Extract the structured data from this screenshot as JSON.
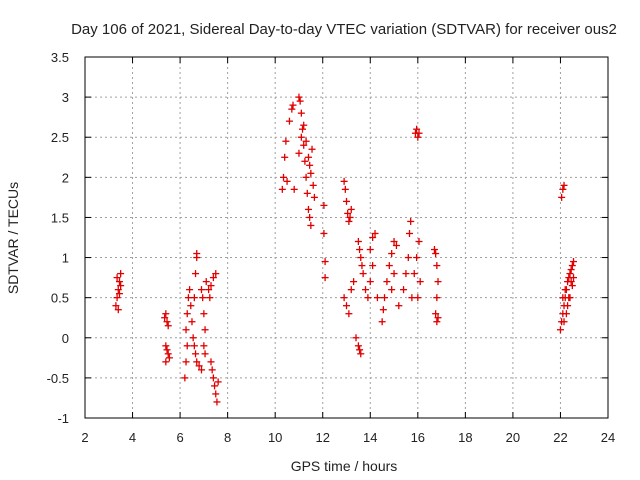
{
  "chart_data": {
    "type": "scatter",
    "title": "Day 106 of 2021, Sidereal Day-to-day VTEC variation (SDTVAR) for receiver ous2",
    "xlabel": "GPS time / hours",
    "ylabel": "SDTVAR / TECUs",
    "xlim": [
      2,
      24
    ],
    "ylim": [
      -1,
      3.5
    ],
    "xticks": [
      "2",
      "4",
      "6",
      "8",
      "10",
      "12",
      "14",
      "16",
      "18",
      "20",
      "22",
      "24"
    ],
    "yticks": [
      "-1",
      "-0.5",
      "0",
      "0.5",
      "1",
      "1.5",
      "2",
      "2.5",
      "3",
      "3.5"
    ],
    "grid": true,
    "marker": "+",
    "color": "#e00000",
    "series": [
      {
        "name": "SDTVAR",
        "points": [
          [
            3.3,
            0.4
          ],
          [
            3.35,
            0.5
          ],
          [
            3.4,
            0.6
          ],
          [
            3.45,
            0.7
          ],
          [
            3.5,
            0.8
          ],
          [
            3.4,
            0.35
          ],
          [
            3.45,
            0.55
          ],
          [
            3.5,
            0.65
          ],
          [
            3.35,
            0.75
          ],
          [
            5.35,
            0.25
          ],
          [
            5.4,
            0.3
          ],
          [
            5.45,
            0.2
          ],
          [
            5.5,
            0.15
          ],
          [
            5.4,
            -0.1
          ],
          [
            5.45,
            -0.15
          ],
          [
            5.5,
            -0.2
          ],
          [
            5.55,
            -0.25
          ],
          [
            5.4,
            -0.3
          ],
          [
            6.2,
            -0.5
          ],
          [
            6.25,
            -0.3
          ],
          [
            6.3,
            -0.1
          ],
          [
            6.25,
            0.1
          ],
          [
            6.3,
            0.3
          ],
          [
            6.35,
            0.5
          ],
          [
            6.4,
            0.6
          ],
          [
            6.45,
            0.4
          ],
          [
            6.5,
            0.2
          ],
          [
            6.55,
            0.0
          ],
          [
            6.6,
            0.5
          ],
          [
            6.65,
            0.8
          ],
          [
            6.7,
            1.0
          ],
          [
            6.7,
            1.05
          ],
          [
            6.6,
            -0.1
          ],
          [
            6.65,
            -0.2
          ],
          [
            6.7,
            -0.3
          ],
          [
            6.8,
            -0.35
          ],
          [
            6.9,
            -0.4
          ],
          [
            7.0,
            -0.1
          ],
          [
            7.05,
            0.1
          ],
          [
            7.0,
            0.3
          ],
          [
            6.95,
            0.5
          ],
          [
            6.9,
            0.6
          ],
          [
            7.1,
            0.7
          ],
          [
            7.05,
            -0.2
          ],
          [
            7.2,
            0.6
          ],
          [
            7.25,
            0.5
          ],
          [
            7.3,
            0.65
          ],
          [
            7.4,
            0.75
          ],
          [
            7.5,
            0.8
          ],
          [
            7.3,
            -0.3
          ],
          [
            7.35,
            -0.4
          ],
          [
            7.4,
            -0.5
          ],
          [
            7.45,
            -0.6
          ],
          [
            7.5,
            -0.7
          ],
          [
            7.55,
            -0.8
          ],
          [
            7.6,
            -0.55
          ],
          [
            10.3,
            1.85
          ],
          [
            10.35,
            2.0
          ],
          [
            10.4,
            2.25
          ],
          [
            10.45,
            2.45
          ],
          [
            10.5,
            1.95
          ],
          [
            10.6,
            2.7
          ],
          [
            10.7,
            2.85
          ],
          [
            10.75,
            2.9
          ],
          [
            10.8,
            1.85
          ],
          [
            11.0,
            3.0
          ],
          [
            11.05,
            2.95
          ],
          [
            11.1,
            2.8
          ],
          [
            11.15,
            2.6
          ],
          [
            11.2,
            2.4
          ],
          [
            11.25,
            2.2
          ],
          [
            11.3,
            2.0
          ],
          [
            11.35,
            1.8
          ],
          [
            11.4,
            1.6
          ],
          [
            11.45,
            1.5
          ],
          [
            11.5,
            1.4
          ],
          [
            11.0,
            2.3
          ],
          [
            11.1,
            2.5
          ],
          [
            11.2,
            2.65
          ],
          [
            11.3,
            2.45
          ],
          [
            11.4,
            2.25
          ],
          [
            11.5,
            2.05
          ],
          [
            11.6,
            1.9
          ],
          [
            11.65,
            1.75
          ],
          [
            11.55,
            2.35
          ],
          [
            11.45,
            2.15
          ],
          [
            12.05,
            1.65
          ],
          [
            12.05,
            1.3
          ],
          [
            12.1,
            0.95
          ],
          [
            12.1,
            0.75
          ],
          [
            12.9,
            1.95
          ],
          [
            12.95,
            1.85
          ],
          [
            13.0,
            1.7
          ],
          [
            13.05,
            1.55
          ],
          [
            13.1,
            1.45
          ],
          [
            13.15,
            1.5
          ],
          [
            13.2,
            1.6
          ],
          [
            12.9,
            0.5
          ],
          [
            13.0,
            0.4
          ],
          [
            13.1,
            0.3
          ],
          [
            13.2,
            0.6
          ],
          [
            13.3,
            0.7
          ],
          [
            13.4,
            0.0
          ],
          [
            13.5,
            -0.1
          ],
          [
            13.55,
            -0.15
          ],
          [
            13.6,
            -0.2
          ],
          [
            13.5,
            1.2
          ],
          [
            13.55,
            1.1
          ],
          [
            13.6,
            1.0
          ],
          [
            13.65,
            0.9
          ],
          [
            13.7,
            0.8
          ],
          [
            13.8,
            0.6
          ],
          [
            13.9,
            0.5
          ],
          [
            14.0,
            0.7
          ],
          [
            14.1,
            0.9
          ],
          [
            14.0,
            1.1
          ],
          [
            14.1,
            1.25
          ],
          [
            14.2,
            1.3
          ],
          [
            14.3,
            0.5
          ],
          [
            14.5,
            0.2
          ],
          [
            14.55,
            0.35
          ],
          [
            14.6,
            0.5
          ],
          [
            14.7,
            0.7
          ],
          [
            14.8,
            0.9
          ],
          [
            14.9,
            1.05
          ],
          [
            15.0,
            1.2
          ],
          [
            15.1,
            1.15
          ],
          [
            15.0,
            0.8
          ],
          [
            14.9,
            0.6
          ],
          [
            15.2,
            0.4
          ],
          [
            15.4,
            0.6
          ],
          [
            15.5,
            0.8
          ],
          [
            15.6,
            1.0
          ],
          [
            15.65,
            1.3
          ],
          [
            15.7,
            1.45
          ],
          [
            15.75,
            0.5
          ],
          [
            15.9,
            2.55
          ],
          [
            15.95,
            2.6
          ],
          [
            16.0,
            2.5
          ],
          [
            16.05,
            2.55
          ],
          [
            15.85,
            0.8
          ],
          [
            15.95,
            1.0
          ],
          [
            16.05,
            1.2
          ],
          [
            16.0,
            0.5
          ],
          [
            16.1,
            0.7
          ],
          [
            16.7,
            1.1
          ],
          [
            16.75,
            1.05
          ],
          [
            16.8,
            0.9
          ],
          [
            16.85,
            0.7
          ],
          [
            16.8,
            0.5
          ],
          [
            16.75,
            0.3
          ],
          [
            16.8,
            0.2
          ],
          [
            16.85,
            0.25
          ],
          [
            22.05,
            1.75
          ],
          [
            22.1,
            1.85
          ],
          [
            22.15,
            1.9
          ],
          [
            22.0,
            0.1
          ],
          [
            22.05,
            0.2
          ],
          [
            22.1,
            0.3
          ],
          [
            22.15,
            0.4
          ],
          [
            22.2,
            0.5
          ],
          [
            22.25,
            0.6
          ],
          [
            22.3,
            0.7
          ],
          [
            22.35,
            0.75
          ],
          [
            22.4,
            0.8
          ],
          [
            22.45,
            0.85
          ],
          [
            22.5,
            0.9
          ],
          [
            22.55,
            0.95
          ],
          [
            22.1,
            0.5
          ],
          [
            22.2,
            0.6
          ],
          [
            22.3,
            0.4
          ],
          [
            22.4,
            0.5
          ],
          [
            22.5,
            0.65
          ],
          [
            22.15,
            0.2
          ],
          [
            22.25,
            0.3
          ],
          [
            22.35,
            0.5
          ],
          [
            22.45,
            0.7
          ],
          [
            22.55,
            0.75
          ]
        ]
      }
    ]
  }
}
